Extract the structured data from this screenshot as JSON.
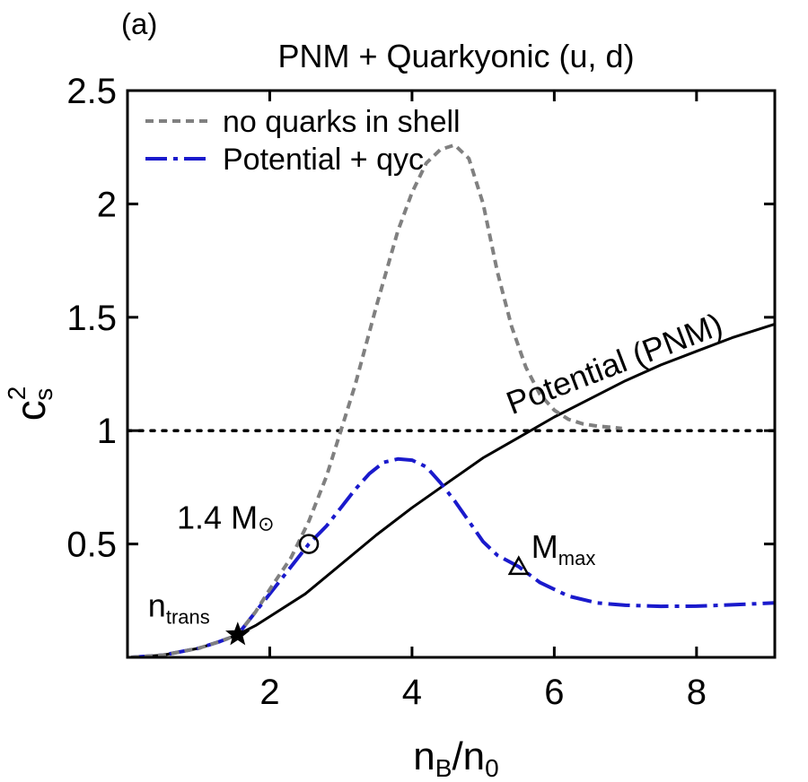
{
  "chart_data": {
    "type": "line",
    "panel_label": "(a)",
    "title": "PNM + Quarkyonic (u, d)",
    "xlabel": {
      "main": "n",
      "sub1": "B",
      "sep": "/n",
      "sub2": "0"
    },
    "ylabel": {
      "main": "c",
      "sup": "2",
      "sub": "s"
    },
    "xlim": [
      0,
      9.1
    ],
    "ylim": [
      0,
      2.5
    ],
    "xticks": [
      2,
      4,
      6,
      8
    ],
    "yticks": [
      0.5,
      1,
      1.5,
      2,
      2.5
    ],
    "xtick_labels": [
      "2",
      "4",
      "6",
      "8"
    ],
    "ytick_labels": [
      "0.5",
      "1",
      "1.5",
      "2",
      "2.5"
    ],
    "grid": false,
    "legend_position": "top-left",
    "reference_line": {
      "y": 1,
      "style": "dotted"
    },
    "series": [
      {
        "name": "no quarks in shell",
        "color": "#808080",
        "style": "dashed",
        "x": [
          0.05,
          0.5,
          1.0,
          1.3,
          1.55,
          1.8,
          2.0,
          2.3,
          2.55,
          2.8,
          3.0,
          3.2,
          3.5,
          3.8,
          4.0,
          4.2,
          4.4,
          4.6,
          4.8,
          5.0,
          5.2,
          5.4,
          5.6,
          5.8,
          6.0,
          6.2,
          6.4,
          6.6,
          6.8,
          6.95
        ],
        "y": [
          0.0,
          0.01,
          0.04,
          0.07,
          0.1,
          0.2,
          0.3,
          0.44,
          0.6,
          0.8,
          1.0,
          1.2,
          1.55,
          1.88,
          2.05,
          2.18,
          2.24,
          2.26,
          2.2,
          2.0,
          1.7,
          1.46,
          1.28,
          1.16,
          1.09,
          1.05,
          1.03,
          1.02,
          1.015,
          1.01
        ]
      },
      {
        "name": "Potential + qyc",
        "color": "#1a1acc",
        "style": "dashdot",
        "x": [
          0.05,
          0.5,
          1.0,
          1.3,
          1.55,
          1.8,
          2.0,
          2.25,
          2.55,
          2.8,
          3.0,
          3.2,
          3.4,
          3.6,
          3.8,
          4.0,
          4.2,
          4.4,
          4.6,
          4.8,
          5.0,
          5.2,
          5.5,
          5.8,
          6.2,
          6.6,
          7.0,
          7.5,
          8.0,
          8.5,
          9.1
        ],
        "y": [
          0.0,
          0.01,
          0.04,
          0.07,
          0.1,
          0.2,
          0.28,
          0.38,
          0.5,
          0.58,
          0.66,
          0.74,
          0.81,
          0.86,
          0.875,
          0.87,
          0.84,
          0.77,
          0.69,
          0.6,
          0.51,
          0.45,
          0.4,
          0.33,
          0.27,
          0.24,
          0.23,
          0.225,
          0.226,
          0.232,
          0.24
        ]
      },
      {
        "name": "Potential (PNM)",
        "color": "#000000",
        "style": "solid",
        "x": [
          0.05,
          0.5,
          1.0,
          1.3,
          1.55,
          1.8,
          2.0,
          2.5,
          3.0,
          3.5,
          4.0,
          4.5,
          5.0,
          5.5,
          6.0,
          6.5,
          7.0,
          7.5,
          8.0,
          8.5,
          9.1
        ],
        "y": [
          0.0,
          0.01,
          0.04,
          0.07,
          0.1,
          0.14,
          0.18,
          0.28,
          0.41,
          0.54,
          0.66,
          0.77,
          0.88,
          0.97,
          1.06,
          1.14,
          1.22,
          1.29,
          1.35,
          1.41,
          1.47
        ]
      }
    ],
    "legend": [
      {
        "label": "no quarks in shell",
        "color": "#808080",
        "style": "dashed"
      },
      {
        "label": "Potential + qyc",
        "color": "#1a1acc",
        "style": "dashdot"
      }
    ],
    "inline_label": {
      "text": "Potential (PNM)",
      "x": 6.9,
      "y": 1.25,
      "angle": -21
    },
    "markers": [
      {
        "kind": "star",
        "x": 1.55,
        "y": 0.1,
        "label_main": "n",
        "label_sub": "trans"
      },
      {
        "kind": "circle",
        "x": 2.55,
        "y": 0.5,
        "label_main": "1.4 M",
        "label_sub": "⊙"
      },
      {
        "kind": "triangle",
        "x": 5.5,
        "y": 0.4,
        "label_main": "M",
        "label_sub": "max"
      }
    ]
  }
}
